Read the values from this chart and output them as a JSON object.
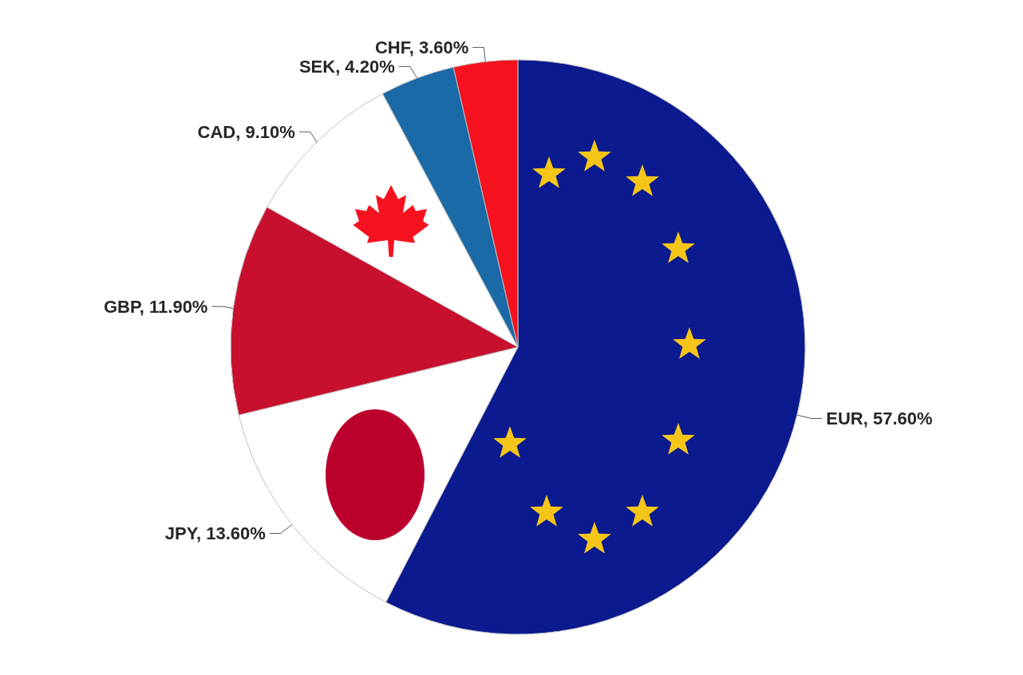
{
  "chart_data": {
    "type": "pie",
    "categories": [
      "EUR",
      "JPY",
      "GBP",
      "CAD",
      "SEK",
      "CHF"
    ],
    "values": [
      57.6,
      13.6,
      11.9,
      9.1,
      4.2,
      3.6
    ],
    "colors": [
      "#0b1a8f",
      "#ffffff",
      "#c8102e",
      "#ffffff",
      "#1a6aa8",
      "#f5121e"
    ],
    "value_labels": [
      "57.60%",
      "13.60%",
      "11.90%",
      "9.10%",
      "4.20%",
      "3.60%"
    ]
  }
}
